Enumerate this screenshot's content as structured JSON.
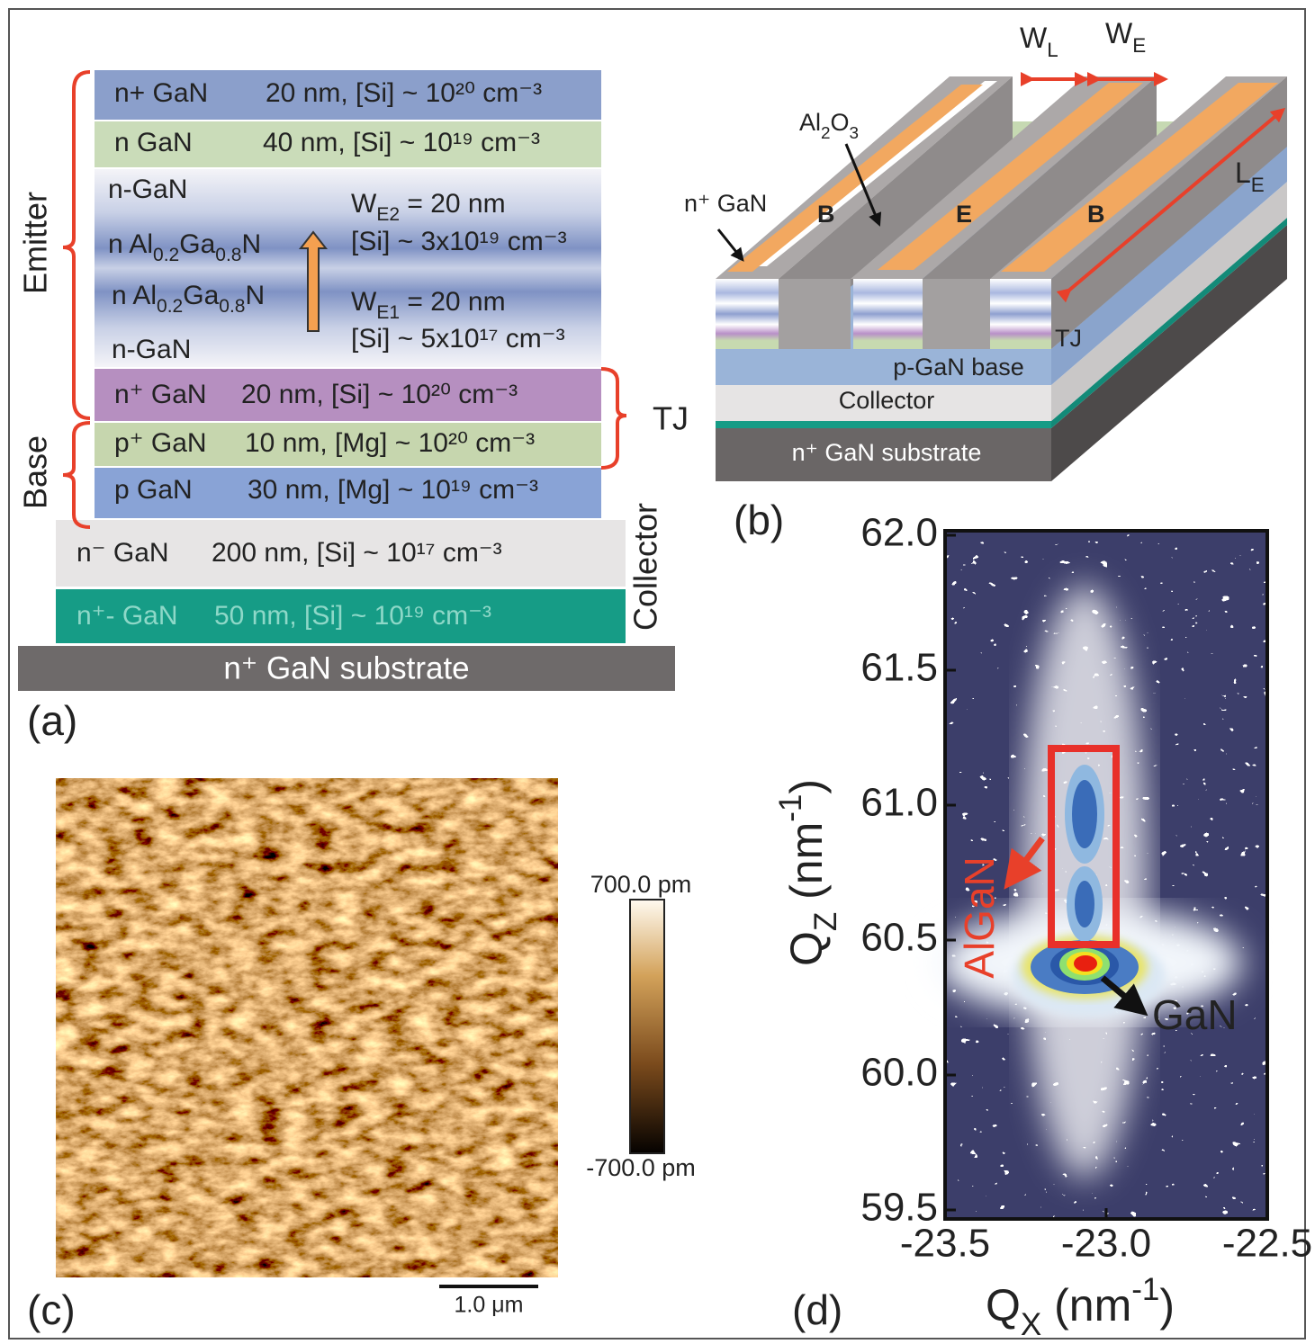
{
  "panel_a": {
    "label": "(a)",
    "brackets": {
      "emitter": "Emitter",
      "base": "Base",
      "tj": "TJ",
      "collector": "Collector"
    },
    "layers": [
      {
        "name": "n+ GaN",
        "spec": "20 nm, [Si] ~ 10²⁰ cm⁻³"
      },
      {
        "name": "n GaN",
        "spec": "40 nm, [Si] ~ 10¹⁹ cm⁻³"
      },
      {
        "name": "n⁺ GaN",
        "spec": "20 nm, [Si] ~ 10²⁰ cm⁻³"
      },
      {
        "name": "p⁺ GaN",
        "spec": "10 nm, [Mg] ~ 10²⁰ cm⁻³"
      },
      {
        "name": "p GaN",
        "spec": "30 nm, [Mg] ~ 10¹⁹ cm⁻³"
      },
      {
        "name": "n⁻ GaN",
        "spec": "200 nm, [Si] ~ 10¹⁷ cm⁻³"
      },
      {
        "name": "n⁺- GaN",
        "spec": "50 nm, [Si] ~ 10¹⁹ cm⁻³"
      }
    ],
    "graded": {
      "top": "n-GaN",
      "al_upper": [
        "n Al",
        "0.2",
        "Ga",
        "0.8",
        "N"
      ],
      "al_lower": [
        "n Al",
        "0.2",
        "Ga",
        "0.8",
        "N"
      ],
      "bottom": "n-GaN",
      "we2": [
        "W",
        "E2",
        " = 20 nm"
      ],
      "si_upper": "[Si] ~ 3x10¹⁹ cm⁻³",
      "we1": [
        "W",
        "E1",
        " = 20 nm"
      ],
      "si_lower": "[Si] ~ 5x10¹⁷ cm⁻³"
    },
    "substrate": "n⁺ GaN substrate"
  },
  "panel_b": {
    "label": "(b)",
    "wl": [
      "W",
      "L"
    ],
    "we": [
      "W",
      "E"
    ],
    "al2o3": [
      "Al",
      "2",
      "O",
      "3"
    ],
    "n_gan": "n⁺ GaN",
    "contacts": [
      "B",
      "E",
      "B"
    ],
    "le": [
      "L",
      "E"
    ],
    "tj": "TJ",
    "base": "p-GaN base",
    "collector": "Collector",
    "substrate": "n⁺ GaN substrate"
  },
  "panel_c": {
    "label": "(c)",
    "colorbar_max": "700.0 pm",
    "colorbar_min": "-700.0 pm",
    "scale_bar": "1.0 μm"
  },
  "panel_d": {
    "label": "(d)",
    "y_ticks": [
      "62.0",
      "61.5",
      "61.0",
      "60.5",
      "60.0",
      "59.5"
    ],
    "x_ticks": [
      "-23.5",
      "-23.0",
      "-22.5"
    ],
    "y_label": [
      "Q",
      "Z",
      " (nm",
      "-1",
      ")"
    ],
    "x_label": [
      "Q",
      "X",
      " (nm",
      "-1",
      ")"
    ],
    "algan": "AlGaN",
    "gan": "GaN"
  }
}
